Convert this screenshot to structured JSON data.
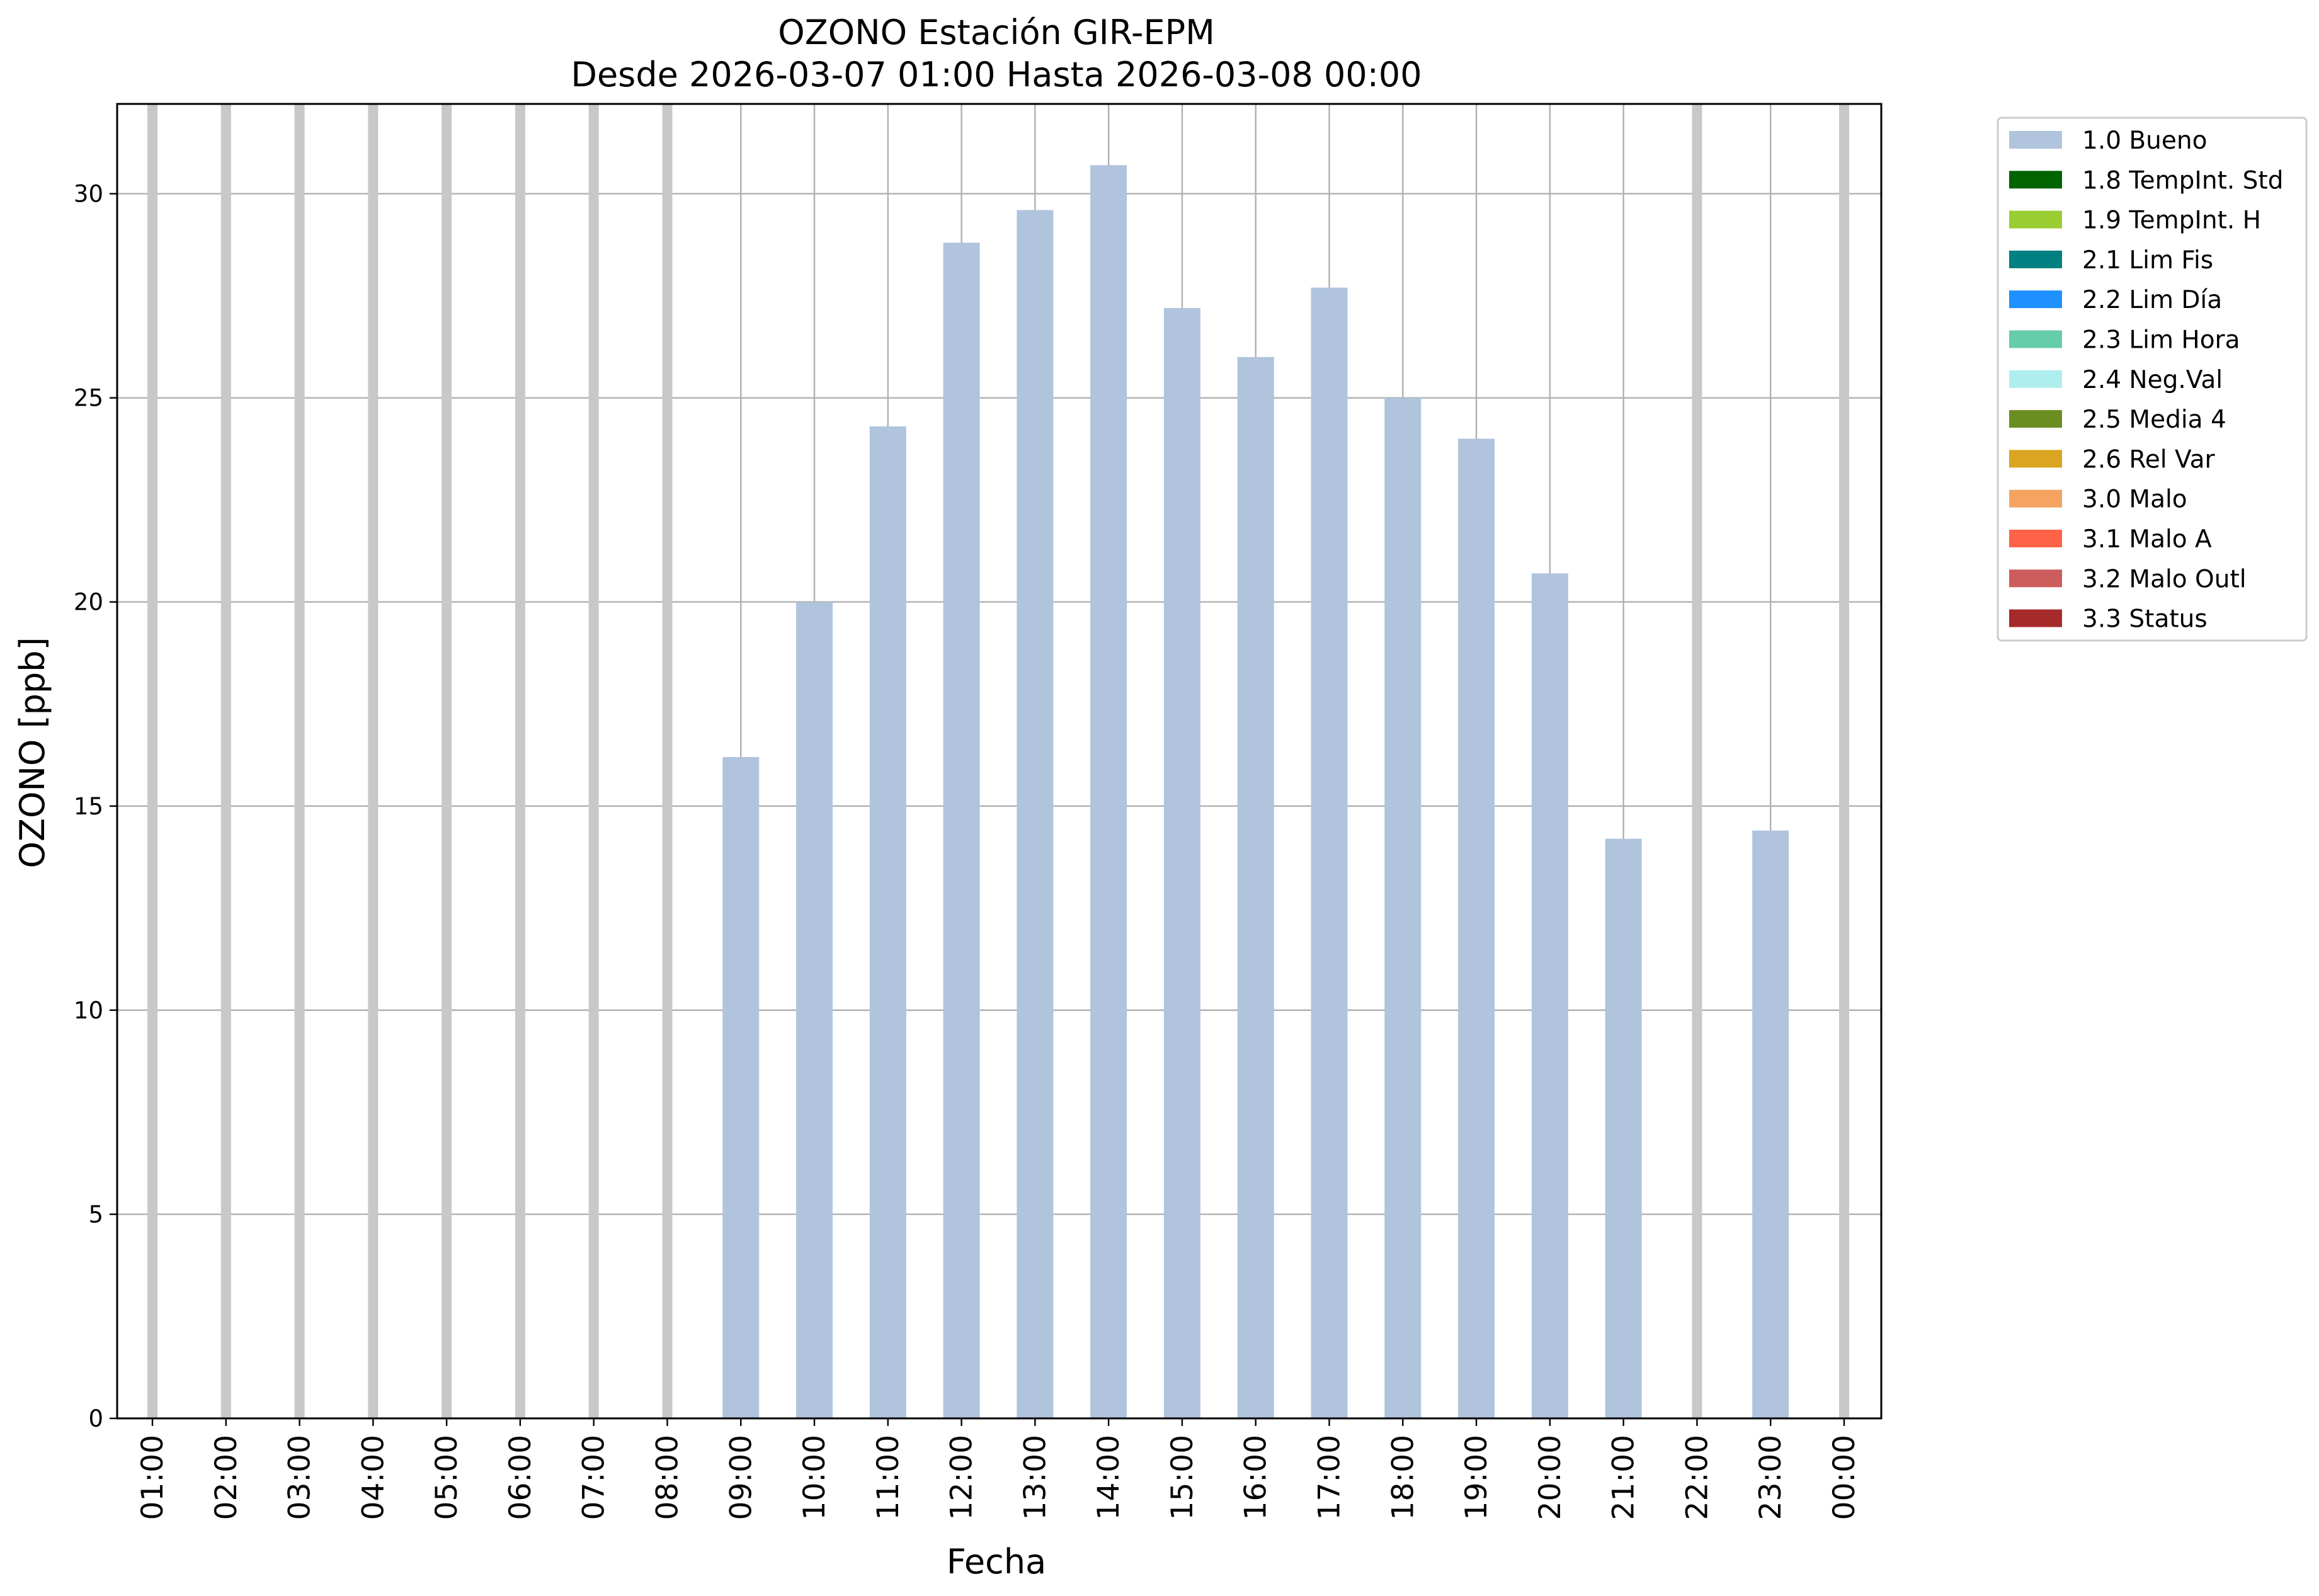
{
  "chart_data": {
    "type": "bar",
    "title": "OZONO Estación GIR-EPM",
    "subtitle": "Desde 2026-03-07 01:00 Hasta 2026-03-08 00:00",
    "xlabel": "Fecha",
    "ylabel": "OZONO [ppb]",
    "ylim": [
      0,
      32.2
    ],
    "yticks": [
      "0",
      "5",
      "10",
      "15",
      "20",
      "25",
      "30"
    ],
    "grid": true,
    "legend_position": "outside-right-top",
    "categories": [
      "01:00",
      "02:00",
      "03:00",
      "04:00",
      "05:00",
      "06:00",
      "07:00",
      "08:00",
      "09:00",
      "10:00",
      "11:00",
      "12:00",
      "13:00",
      "14:00",
      "15:00",
      "16:00",
      "17:00",
      "18:00",
      "19:00",
      "20:00",
      "21:00",
      "22:00",
      "23:00",
      "00:00"
    ],
    "series": [
      {
        "name": "1.0 Bueno",
        "color": "#b0c4de",
        "values": [
          null,
          null,
          null,
          null,
          null,
          null,
          null,
          null,
          16.2,
          20.0,
          24.3,
          28.8,
          29.6,
          30.7,
          27.2,
          26.0,
          27.7,
          25.0,
          24.0,
          20.7,
          14.2,
          null,
          14.4,
          null
        ]
      }
    ],
    "missing_marker_color": "#c8c8c8",
    "legend": [
      {
        "label": "1.0 Bueno",
        "color": "#b0c4de"
      },
      {
        "label": "1.8 TempInt. Std",
        "color": "#006400"
      },
      {
        "label": "1.9 TempInt. H",
        "color": "#9acd32"
      },
      {
        "label": "2.1 Lim Fis",
        "color": "#008080"
      },
      {
        "label": "2.2 Lim Día",
        "color": "#1e90ff"
      },
      {
        "label": "2.3 Lim Hora",
        "color": "#66cdaa"
      },
      {
        "label": "2.4 Neg.Val",
        "color": "#afeeee"
      },
      {
        "label": "2.5 Media 4",
        "color": "#6b8e23"
      },
      {
        "label": "2.6 Rel Var",
        "color": "#daa520"
      },
      {
        "label": "3.0 Malo",
        "color": "#f4a460"
      },
      {
        "label": "3.1 Malo A",
        "color": "#ff6347"
      },
      {
        "label": "3.2 Malo Outl",
        "color": "#cd5c5c"
      },
      {
        "label": "3.3 Status",
        "color": "#a52a2a"
      }
    ]
  }
}
